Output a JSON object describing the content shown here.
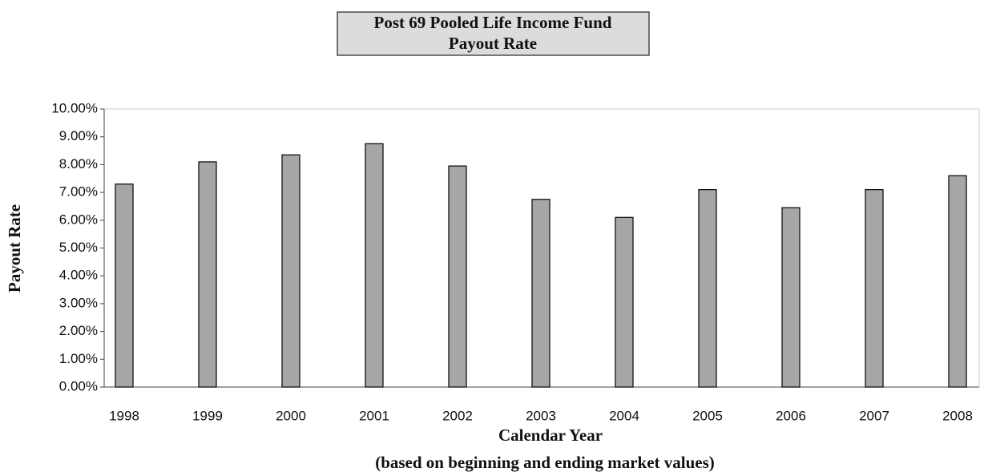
{
  "chart_data": {
    "type": "bar",
    "title": "Post 69 Pooled Life Income Fund",
    "subtitle": "Payout Rate",
    "x_label": "Calendar Year",
    "note": "(based on beginning and ending market values)",
    "y_label": "Payout Rate",
    "categories": [
      "1998",
      "1999",
      "2000",
      "2001",
      "2002",
      "2003",
      "2004",
      "2005",
      "2006",
      "2007",
      "2008"
    ],
    "values": [
      7.3,
      8.1,
      8.35,
      8.75,
      7.95,
      6.75,
      6.1,
      7.1,
      6.45,
      7.1,
      7.6
    ],
    "color": "#a6a6a6",
    "ylim": [
      0,
      10
    ],
    "yticks": [
      {
        "value": 0,
        "label": "0.00%"
      },
      {
        "value": 1,
        "label": "1.00%"
      },
      {
        "value": 2,
        "label": "2.00%"
      },
      {
        "value": 3,
        "label": "3.00%"
      },
      {
        "value": 4,
        "label": "4.00%"
      },
      {
        "value": 5,
        "label": "5.00%"
      },
      {
        "value": 6,
        "label": "6.00%"
      },
      {
        "value": 7,
        "label": "7.00%"
      },
      {
        "value": 8,
        "label": "8.00%"
      },
      {
        "value": 9,
        "label": "9.00%"
      },
      {
        "value": 10,
        "label": "10.00%"
      }
    ],
    "grid": false
  }
}
